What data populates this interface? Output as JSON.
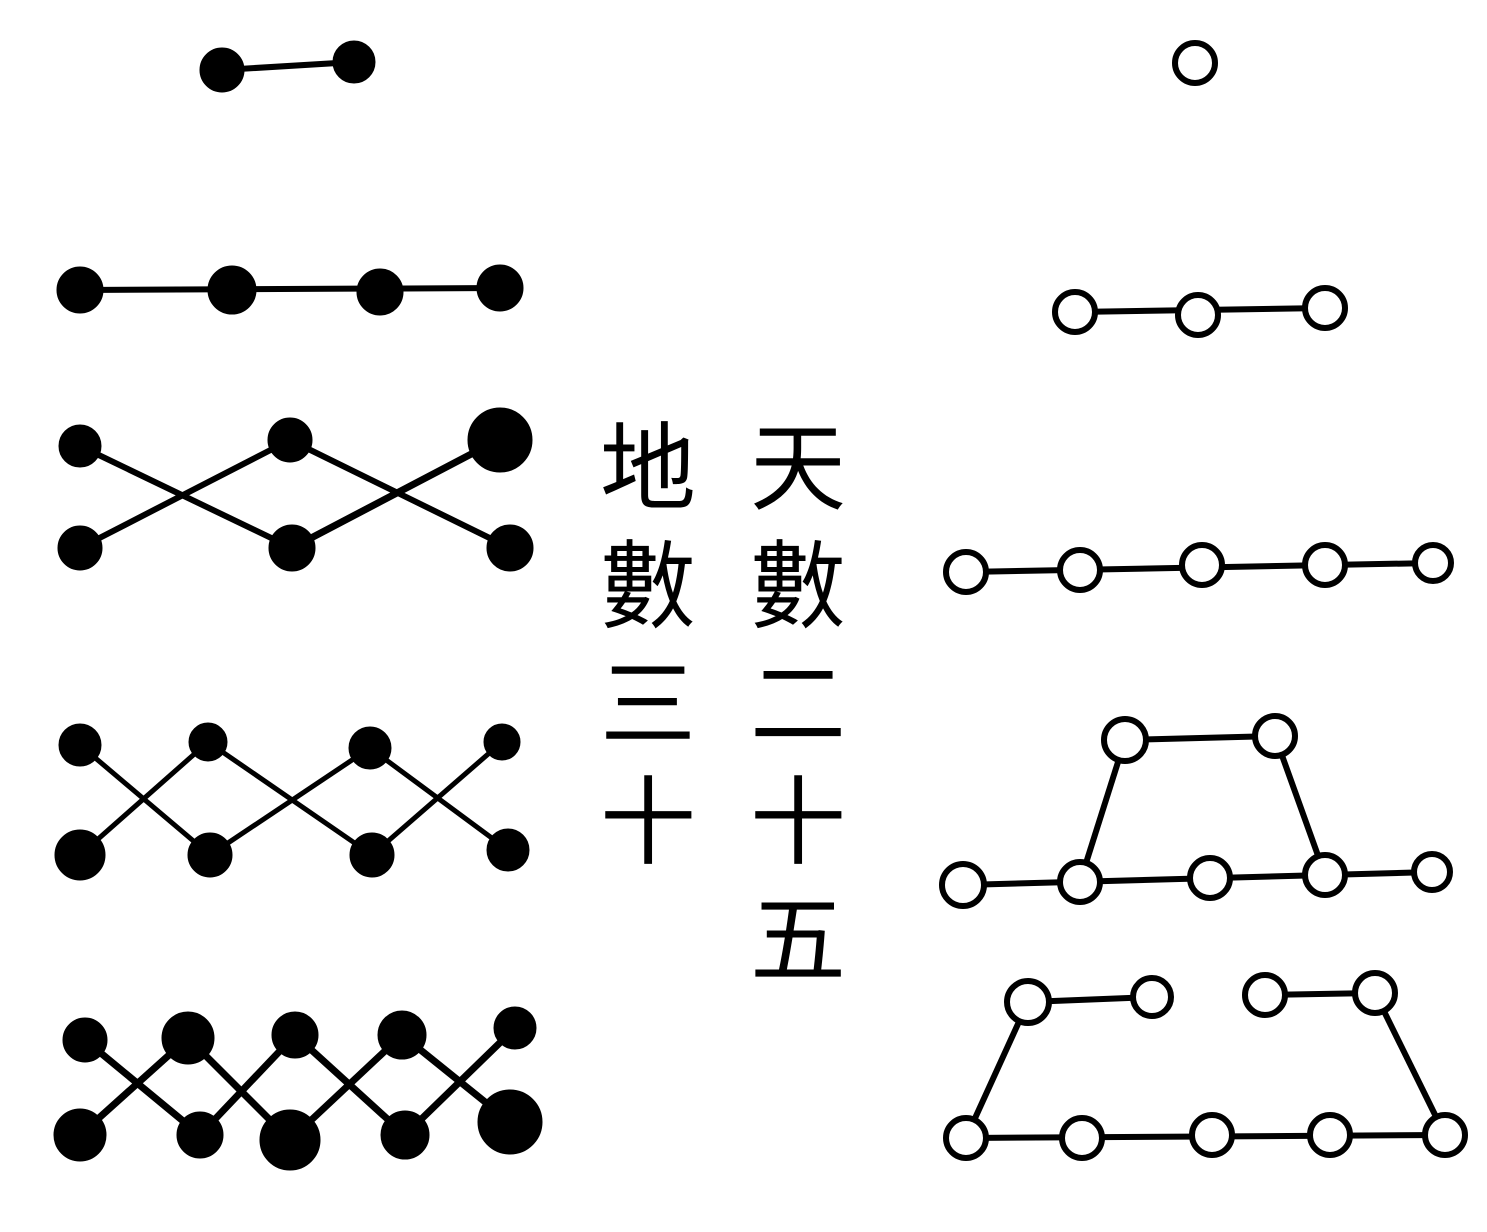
{
  "labels": {
    "earth": "地數三十",
    "heaven": "天數二十五"
  },
  "colors": {
    "ink": "#000000",
    "paper": "#ffffff"
  },
  "groups": {
    "earth": {
      "dot_style": "filled-black",
      "rows": [
        {
          "dots": 2
        },
        {
          "dots": 4
        },
        {
          "dots": 6,
          "pattern": "zigzag"
        },
        {
          "dots": 8,
          "pattern": "zigzag"
        },
        {
          "dots": 10,
          "pattern": "zigzag"
        }
      ]
    },
    "heaven": {
      "dot_style": "hollow-white",
      "rows": [
        {
          "dots": 1
        },
        {
          "dots": 3
        },
        {
          "dots": 5
        },
        {
          "dots": 7,
          "pattern": "trapezoid"
        },
        {
          "dots": 9,
          "pattern": "trapezoid-split"
        }
      ]
    }
  }
}
